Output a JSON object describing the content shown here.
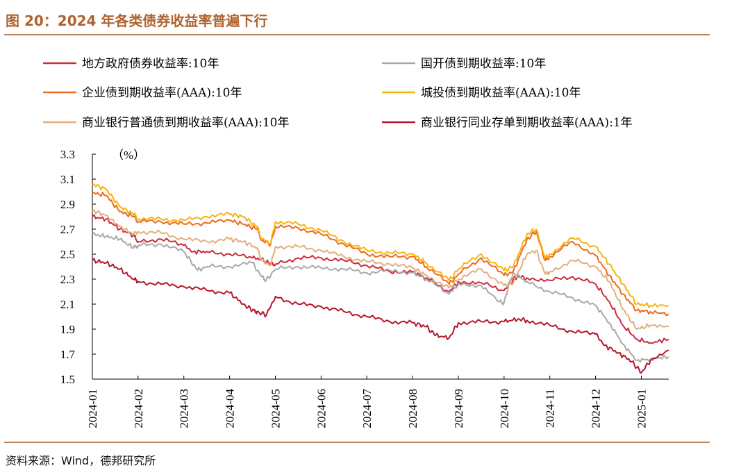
{
  "header": {
    "title": "图 20：2024 年各类债券收益率普遍下行"
  },
  "footer": {
    "source": "资料来源：Wind，德邦研究所"
  },
  "chart_data": {
    "type": "line",
    "unit_label": "（%）",
    "ylim": [
      1.5,
      3.3
    ],
    "yticks": [
      "1.5",
      "1.7",
      "1.9",
      "2.1",
      "2.3",
      "2.5",
      "2.7",
      "2.9",
      "3.1",
      "3.3"
    ],
    "x_tick_labels": [
      "2024-01",
      "2024-02",
      "2024-03",
      "2024-04",
      "2024-05",
      "2024-06",
      "2024-07",
      "2024-08",
      "2024-09",
      "2024-10",
      "2024-11",
      "2024-12",
      "2025-01"
    ],
    "x_range_months": [
      0,
      12.6
    ],
    "grid": false,
    "legend_position": "top, two columns",
    "series": [
      {
        "name": "地方政府债券收益率:10年",
        "color": "#cc2b3c",
        "x": [
          0,
          0.3,
          0.6,
          0.9,
          1.0,
          1.5,
          2.0,
          2.2,
          2.5,
          3.0,
          3.5,
          3.7,
          3.9,
          4.0,
          4.5,
          5.0,
          5.5,
          6.0,
          6.5,
          7.0,
          7.3,
          7.8,
          8.0,
          8.5,
          9.0,
          9.2,
          9.3,
          9.5,
          10.0,
          10.5,
          11.0,
          11.3,
          11.6,
          11.9,
          12.2,
          12.6
        ],
        "values": [
          2.8,
          2.78,
          2.7,
          2.65,
          2.6,
          2.62,
          2.57,
          2.52,
          2.52,
          2.5,
          2.47,
          2.46,
          2.42,
          2.42,
          2.47,
          2.47,
          2.45,
          2.41,
          2.36,
          2.36,
          2.31,
          2.2,
          2.28,
          2.27,
          2.21,
          2.3,
          2.32,
          2.31,
          2.29,
          2.32,
          2.26,
          2.12,
          1.93,
          1.82,
          1.79,
          1.82
        ]
      },
      {
        "name": "国开债到期收益率:10年",
        "color": "#a9a9a9",
        "x": [
          0,
          0.3,
          0.6,
          0.9,
          1.0,
          1.5,
          2.0,
          2.3,
          2.5,
          3.0,
          3.5,
          3.7,
          3.8,
          4.0,
          4.5,
          5.0,
          5.5,
          6.0,
          6.5,
          7.0,
          7.3,
          7.8,
          8.0,
          8.5,
          8.9,
          9.0,
          9.1,
          9.2,
          9.5,
          10.0,
          10.5,
          11.0,
          11.3,
          11.6,
          11.9,
          12.2,
          12.6
        ],
        "values": [
          2.66,
          2.64,
          2.62,
          2.55,
          2.57,
          2.58,
          2.52,
          2.37,
          2.4,
          2.4,
          2.43,
          2.32,
          2.29,
          2.38,
          2.4,
          2.39,
          2.38,
          2.35,
          2.37,
          2.35,
          2.3,
          2.18,
          2.26,
          2.25,
          2.12,
          2.11,
          2.25,
          2.35,
          2.28,
          2.2,
          2.15,
          2.09,
          1.95,
          1.78,
          1.65,
          1.66,
          1.68
        ]
      },
      {
        "name": "企业债到期收益率(AAA):10年",
        "color": "#ee6a1f",
        "x": [
          0,
          0.3,
          0.6,
          0.9,
          1.0,
          1.5,
          2.0,
          2.5,
          3.0,
          3.3,
          3.6,
          3.7,
          3.9,
          4.0,
          4.5,
          5.0,
          5.5,
          6.0,
          6.5,
          7.0,
          7.3,
          7.8,
          8.0,
          8.5,
          9.0,
          9.2,
          9.5,
          9.7,
          9.9,
          10.0,
          10.5,
          11.0,
          11.3,
          11.6,
          11.9,
          12.2,
          12.6
        ],
        "values": [
          2.99,
          2.97,
          2.84,
          2.8,
          2.76,
          2.76,
          2.74,
          2.75,
          2.77,
          2.74,
          2.7,
          2.61,
          2.58,
          2.72,
          2.71,
          2.66,
          2.58,
          2.5,
          2.48,
          2.48,
          2.4,
          2.26,
          2.34,
          2.47,
          2.33,
          2.36,
          2.62,
          2.68,
          2.45,
          2.48,
          2.6,
          2.49,
          2.33,
          2.18,
          2.05,
          2.04,
          2.02
        ]
      },
      {
        "name": "城投债到期收益率(AAA):10年",
        "color": "#f6b40f",
        "x": [
          0,
          0.3,
          0.6,
          0.9,
          1.0,
          1.5,
          2.0,
          2.5,
          3.0,
          3.3,
          3.6,
          3.7,
          3.9,
          4.0,
          4.5,
          5.0,
          5.5,
          6.0,
          6.5,
          7.0,
          7.3,
          7.8,
          8.0,
          8.5,
          9.0,
          9.2,
          9.5,
          9.7,
          9.9,
          10.0,
          10.5,
          11.0,
          11.3,
          11.6,
          11.9,
          12.2,
          12.6
        ],
        "values": [
          3.06,
          3.02,
          2.88,
          2.82,
          2.78,
          2.78,
          2.77,
          2.8,
          2.82,
          2.8,
          2.72,
          2.62,
          2.59,
          2.76,
          2.74,
          2.69,
          2.6,
          2.53,
          2.51,
          2.5,
          2.43,
          2.29,
          2.38,
          2.5,
          2.37,
          2.4,
          2.66,
          2.7,
          2.47,
          2.5,
          2.63,
          2.56,
          2.42,
          2.26,
          2.1,
          2.09,
          2.09
        ]
      },
      {
        "name": "商业银行普通债到期收益率(AAA):10年",
        "color": "#e3ae7c",
        "x": [
          0,
          0.3,
          0.6,
          0.9,
          1.0,
          1.5,
          2.0,
          2.5,
          3.0,
          3.3,
          3.6,
          3.7,
          3.9,
          4.0,
          4.5,
          5.0,
          5.5,
          6.0,
          6.5,
          7.0,
          7.3,
          7.8,
          8.0,
          8.5,
          9.0,
          9.2,
          9.5,
          9.7,
          9.9,
          10.0,
          10.5,
          11.0,
          11.3,
          11.6,
          11.9,
          12.2,
          12.6
        ],
        "values": [
          2.85,
          2.81,
          2.72,
          2.66,
          2.68,
          2.67,
          2.62,
          2.6,
          2.62,
          2.6,
          2.55,
          2.45,
          2.41,
          2.56,
          2.56,
          2.53,
          2.48,
          2.44,
          2.42,
          2.39,
          2.33,
          2.23,
          2.3,
          2.38,
          2.25,
          2.27,
          2.5,
          2.53,
          2.34,
          2.36,
          2.45,
          2.4,
          2.28,
          2.06,
          1.9,
          1.93,
          1.92
        ]
      },
      {
        "name": "商业银行同业存单到期收益率(AAA):1年",
        "color": "#b5152b",
        "x": [
          0,
          0.3,
          0.6,
          0.9,
          1.0,
          1.5,
          2.0,
          2.5,
          3.0,
          3.3,
          3.5,
          3.6,
          3.8,
          4.0,
          4.5,
          5.0,
          5.5,
          6.0,
          6.5,
          7.0,
          7.3,
          7.5,
          7.8,
          8.0,
          8.5,
          9.0,
          9.3,
          9.5,
          10.0,
          10.5,
          11.0,
          11.2,
          11.5,
          11.8,
          12.0,
          12.2,
          12.6
        ],
        "values": [
          2.45,
          2.43,
          2.38,
          2.3,
          2.28,
          2.26,
          2.24,
          2.21,
          2.19,
          2.1,
          2.05,
          2.04,
          2.01,
          2.16,
          2.1,
          2.08,
          2.04,
          2.0,
          1.96,
          1.95,
          1.92,
          1.85,
          1.83,
          1.95,
          1.96,
          1.96,
          1.98,
          1.97,
          1.93,
          1.88,
          1.86,
          1.77,
          1.71,
          1.64,
          1.55,
          1.65,
          1.73
        ]
      }
    ]
  }
}
